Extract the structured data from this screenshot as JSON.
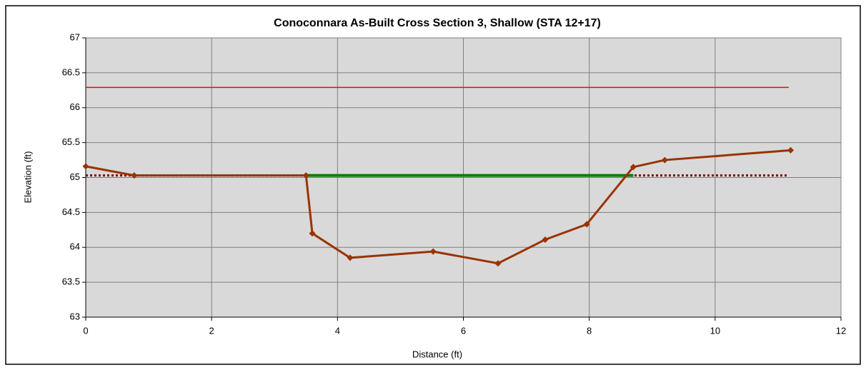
{
  "chart_data": {
    "type": "line",
    "title": "Conoconnara As-Built Cross Section 3, Shallow (STA 12+17)",
    "x_label": "Distance (ft)",
    "y_label": "Elevation (ft)",
    "xlim": [
      0,
      12
    ],
    "xticks": [
      0,
      2,
      4,
      6,
      8,
      10,
      12
    ],
    "ylim": [
      63,
      67
    ],
    "yticks": [
      63,
      63.5,
      64,
      64.5,
      65,
      65.5,
      66,
      66.5,
      67
    ],
    "grid": true,
    "plot_background": "#d9d9d9",
    "series": [
      {
        "color": "#ff0000",
        "width": 1.5,
        "dash": "solid",
        "marker": "none",
        "x": [
          0,
          11.17
        ],
        "values": [
          66.29,
          66.29
        ]
      },
      {
        "color": "#800000",
        "width": 3,
        "dash": "dotted",
        "marker": "none",
        "x": [
          0,
          11.17
        ],
        "values": [
          65.03,
          65.03
        ]
      },
      {
        "color": "#008000",
        "width": 4,
        "dash": "solid",
        "marker": "none",
        "x": [
          3.5,
          8.7
        ],
        "values": [
          65.03,
          65.03
        ]
      },
      {
        "color": "#993300",
        "width": 3,
        "dash": "solid",
        "marker": "diamond",
        "x": [
          0,
          0.77,
          3.5,
          3.6,
          4.2,
          5.52,
          6.55,
          7.3,
          7.96,
          8.7,
          9.2,
          11.2
        ],
        "values": [
          65.16,
          65.03,
          65.03,
          64.2,
          63.85,
          63.94,
          63.77,
          64.11,
          64.33,
          65.15,
          65.25,
          65.39
        ]
      }
    ]
  }
}
